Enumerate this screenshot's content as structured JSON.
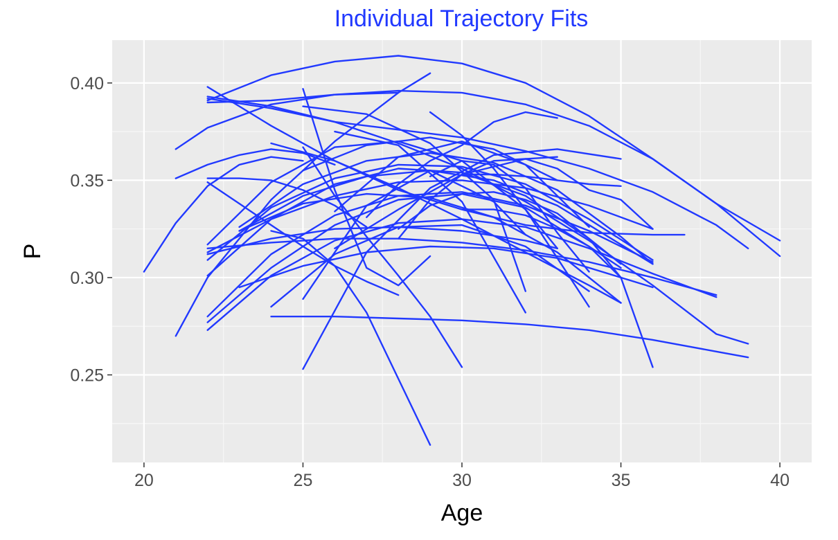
{
  "chart_data": {
    "type": "line",
    "title": "Individual Trajectory Fits",
    "xlabel": "Age",
    "ylabel": "P",
    "xlim": [
      19,
      41
    ],
    "ylim": [
      0.205,
      0.422
    ],
    "x_ticks": [
      20,
      25,
      30,
      35,
      40
    ],
    "y_ticks": [
      0.25,
      0.3,
      0.35,
      0.4
    ],
    "x_tick_labels": [
      "20",
      "25",
      "30",
      "35",
      "40"
    ],
    "y_tick_labels": [
      "0.25",
      "0.30",
      "0.35",
      "0.40"
    ],
    "grid": true,
    "legend": "none",
    "line_color": "#2139ff",
    "panel_color": "#ebebeb",
    "series": [
      {
        "x": [
          20,
          21,
          22,
          23,
          24,
          25
        ],
        "y": [
          0.303,
          0.328,
          0.347,
          0.358,
          0.362,
          0.36
        ]
      },
      {
        "x": [
          21,
          22,
          24,
          26,
          28
        ],
        "y": [
          0.366,
          0.377,
          0.389,
          0.394,
          0.395
        ]
      },
      {
        "x": [
          21,
          22,
          24,
          26,
          28,
          29
        ],
        "y": [
          0.27,
          0.3,
          0.34,
          0.37,
          0.395,
          0.405
        ]
      },
      {
        "x": [
          21,
          22,
          23,
          24,
          25,
          26
        ],
        "y": [
          0.351,
          0.358,
          0.363,
          0.366,
          0.364,
          0.358
        ]
      },
      {
        "x": [
          22,
          24,
          26,
          28,
          30,
          32,
          34,
          36,
          38,
          40
        ],
        "y": [
          0.391,
          0.404,
          0.411,
          0.414,
          0.41,
          0.4,
          0.383,
          0.361,
          0.338,
          0.319
        ]
      },
      {
        "x": [
          22,
          24,
          26,
          28,
          30,
          32,
          34,
          36,
          38,
          39
        ],
        "y": [
          0.393,
          0.388,
          0.38,
          0.369,
          0.356,
          0.339,
          0.319,
          0.296,
          0.271,
          0.266
        ]
      },
      {
        "x": [
          22,
          24,
          26,
          28,
          30,
          32,
          34,
          36,
          38,
          40
        ],
        "y": [
          0.39,
          0.391,
          0.394,
          0.396,
          0.395,
          0.389,
          0.378,
          0.361,
          0.338,
          0.311
        ]
      },
      {
        "x": [
          22,
          24,
          26,
          28,
          30,
          32,
          34,
          36,
          38,
          39
        ],
        "y": [
          0.392,
          0.387,
          0.38,
          0.376,
          0.372,
          0.365,
          0.356,
          0.344,
          0.327,
          0.315
        ]
      },
      {
        "x": [
          22,
          24,
          26,
          28,
          30,
          32,
          34,
          36,
          37
        ],
        "y": [
          0.398,
          0.378,
          0.36,
          0.345,
          0.335,
          0.327,
          0.323,
          0.322,
          0.322
        ]
      },
      {
        "x": [
          22,
          23,
          24,
          25,
          26,
          27
        ],
        "y": [
          0.351,
          0.351,
          0.35,
          0.345,
          0.337,
          0.326
        ]
      },
      {
        "x": [
          22,
          24,
          26,
          28,
          30,
          32,
          33
        ],
        "y": [
          0.317,
          0.349,
          0.367,
          0.37,
          0.36,
          0.335,
          0.315
        ]
      },
      {
        "x": [
          22,
          24,
          26,
          28,
          30,
          32,
          34,
          36
        ],
        "y": [
          0.309,
          0.336,
          0.351,
          0.358,
          0.357,
          0.348,
          0.33,
          0.309
        ]
      },
      {
        "x": [
          22,
          24,
          26,
          28,
          30,
          32,
          34,
          36
        ],
        "y": [
          0.313,
          0.33,
          0.342,
          0.349,
          0.35,
          0.346,
          0.337,
          0.325
        ]
      },
      {
        "x": [
          22,
          24,
          26,
          28,
          30,
          32,
          34,
          35
        ],
        "y": [
          0.301,
          0.33,
          0.348,
          0.356,
          0.354,
          0.342,
          0.32,
          0.307
        ]
      },
      {
        "x": [
          22,
          24,
          26,
          28,
          30,
          32,
          34,
          36
        ],
        "y": [
          0.28,
          0.312,
          0.332,
          0.342,
          0.344,
          0.337,
          0.324,
          0.308
        ]
      },
      {
        "x": [
          22,
          24,
          26,
          28,
          30,
          32,
          34,
          36,
          38
        ],
        "y": [
          0.273,
          0.301,
          0.319,
          0.328,
          0.33,
          0.326,
          0.315,
          0.302,
          0.29
        ]
      },
      {
        "x": [
          22,
          24,
          26,
          28,
          30,
          32,
          34,
          35
        ],
        "y": [
          0.277,
          0.305,
          0.327,
          0.34,
          0.343,
          0.336,
          0.316,
          0.3
        ]
      },
      {
        "x": [
          22,
          24,
          26,
          28,
          30,
          32,
          33
        ],
        "y": [
          0.312,
          0.32,
          0.325,
          0.326,
          0.324,
          0.319,
          0.315
        ]
      },
      {
        "x": [
          22,
          24,
          26,
          28,
          30,
          32,
          34,
          36,
          38
        ],
        "y": [
          0.315,
          0.318,
          0.32,
          0.32,
          0.318,
          0.314,
          0.308,
          0.3,
          0.291
        ]
      },
      {
        "x": [
          22,
          23,
          24,
          25,
          26,
          27,
          28
        ],
        "y": [
          0.349,
          0.338,
          0.327,
          0.316,
          0.306,
          0.298,
          0.291
        ]
      },
      {
        "x": [
          23,
          25,
          27,
          29,
          31,
          33,
          35,
          36
        ],
        "y": [
          0.326,
          0.348,
          0.36,
          0.364,
          0.359,
          0.345,
          0.321,
          0.307
        ]
      },
      {
        "x": [
          23,
          25,
          27,
          29,
          31,
          33,
          35,
          36
        ],
        "y": [
          0.324,
          0.342,
          0.352,
          0.355,
          0.35,
          0.337,
          0.317,
          0.307
        ]
      },
      {
        "x": [
          23,
          25,
          27,
          29,
          31,
          33,
          35
        ],
        "y": [
          0.324,
          0.338,
          0.343,
          0.341,
          0.331,
          0.313,
          0.287
        ]
      },
      {
        "x": [
          23,
          25,
          27,
          29,
          31,
          33,
          35,
          36
        ],
        "y": [
          0.295,
          0.306,
          0.313,
          0.316,
          0.315,
          0.31,
          0.3,
          0.295
        ]
      },
      {
        "x": [
          24,
          26,
          28,
          30,
          32,
          34,
          36,
          38,
          39
        ],
        "y": [
          0.28,
          0.28,
          0.279,
          0.278,
          0.276,
          0.273,
          0.268,
          0.262,
          0.259
        ]
      },
      {
        "x": [
          24,
          26,
          28,
          30,
          32,
          34,
          35
        ],
        "y": [
          0.369,
          0.36,
          0.346,
          0.33,
          0.313,
          0.296,
          0.287
        ]
      },
      {
        "x": [
          24,
          25,
          26,
          27,
          28,
          29
        ],
        "y": [
          0.324,
          0.32,
          0.306,
          0.282,
          0.248,
          0.214
        ]
      },
      {
        "x": [
          24,
          26,
          28,
          30,
          32,
          34
        ],
        "y": [
          0.285,
          0.312,
          0.326,
          0.327,
          0.316,
          0.293
        ]
      },
      {
        "x": [
          25,
          26,
          27,
          28,
          29,
          30
        ],
        "y": [
          0.367,
          0.342,
          0.321,
          0.301,
          0.28,
          0.254
        ]
      },
      {
        "x": [
          25,
          26,
          27,
          28,
          29
        ],
        "y": [
          0.397,
          0.345,
          0.305,
          0.296,
          0.311
        ]
      },
      {
        "x": [
          25,
          27,
          29,
          31,
          33,
          35
        ],
        "y": [
          0.253,
          0.313,
          0.346,
          0.363,
          0.366,
          0.361
        ]
      },
      {
        "x": [
          25,
          27,
          29,
          31,
          32
        ],
        "y": [
          0.289,
          0.337,
          0.355,
          0.339,
          0.322
        ]
      },
      {
        "x": [
          25,
          27,
          29,
          31,
          32
        ],
        "y": [
          0.388,
          0.384,
          0.369,
          0.34,
          0.293
        ]
      },
      {
        "x": [
          25,
          27,
          29,
          31,
          33
        ],
        "y": [
          0.355,
          0.368,
          0.372,
          0.366,
          0.35
        ]
      },
      {
        "x": [
          26,
          28,
          30,
          32,
          34
        ],
        "y": [
          0.334,
          0.362,
          0.37,
          0.358,
          0.326
        ]
      },
      {
        "x": [
          26,
          28,
          30,
          32,
          33
        ],
        "y": [
          0.315,
          0.335,
          0.353,
          0.361,
          0.362
        ]
      },
      {
        "x": [
          26,
          28,
          30,
          32
        ],
        "y": [
          0.375,
          0.368,
          0.339,
          0.282
        ]
      },
      {
        "x": [
          27,
          28,
          29,
          30,
          31,
          32,
          33
        ],
        "y": [
          0.331,
          0.348,
          0.36,
          0.368,
          0.38,
          0.385,
          0.382
        ]
      },
      {
        "x": [
          28,
          29,
          30,
          31,
          32,
          33,
          34,
          35,
          36
        ],
        "y": [
          0.32,
          0.34,
          0.353,
          0.36,
          0.361,
          0.356,
          0.345,
          0.34,
          0.325
        ]
      },
      {
        "x": [
          28,
          29,
          30,
          31,
          32,
          33,
          34,
          35,
          36
        ],
        "y": [
          0.325,
          0.337,
          0.343,
          0.344,
          0.34,
          0.333,
          0.32,
          0.3,
          0.254
        ]
      },
      {
        "x": [
          29,
          30,
          31,
          32,
          33,
          34
        ],
        "y": [
          0.352,
          0.36,
          0.358,
          0.346,
          0.323,
          0.303
        ]
      },
      {
        "x": [
          29,
          30,
          31,
          32,
          33,
          34
        ],
        "y": [
          0.385,
          0.373,
          0.356,
          0.335,
          0.31,
          0.285
        ]
      },
      {
        "x": [
          30,
          31,
          32,
          33,
          34,
          35
        ],
        "y": [
          0.335,
          0.335,
          0.332,
          0.325,
          0.316,
          0.305
        ]
      },
      {
        "x": [
          30,
          31,
          32,
          33,
          34,
          35
        ],
        "y": [
          0.353,
          0.353,
          0.352,
          0.35,
          0.348,
          0.347
        ]
      }
    ]
  }
}
